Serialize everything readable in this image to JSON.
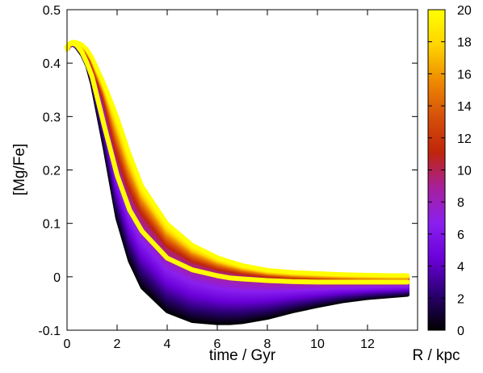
{
  "chart_data": {
    "type": "line",
    "title": "",
    "xlabel": "time / Gyr",
    "ylabel": "[Mg/Fe]",
    "xlim": [
      0,
      14
    ],
    "ylim": [
      -0.1,
      0.5
    ],
    "x_ticks": [
      0,
      2,
      4,
      6,
      8,
      10,
      12
    ],
    "y_ticks": [
      -0.1,
      0,
      0.1,
      0.2,
      0.3,
      0.4,
      0.5
    ],
    "x_tick_labels": [
      "0",
      "2",
      "4",
      "6",
      "8",
      "10",
      "12"
    ],
    "y_tick_labels": [
      "-0.1",
      "0",
      "0.1",
      "0.2",
      "0.3",
      "0.4",
      "0.5"
    ],
    "grid": false,
    "colorbar": {
      "label": "R / kpc",
      "range": [
        0,
        20
      ],
      "ticks": [
        0,
        2,
        4,
        6,
        8,
        10,
        12,
        14,
        16,
        18,
        20
      ],
      "tick_labels": [
        "0",
        "2",
        "4",
        "6",
        "8",
        "10",
        "12",
        "14",
        "16",
        "18",
        "20"
      ],
      "colormap": [
        "#000000",
        "#2a0070",
        "#6a00d8",
        "#8a1ff0",
        "#a7209b",
        "#c0250a",
        "#d6500a",
        "#ee8a00",
        "#ffd400",
        "#ffff00"
      ]
    },
    "highlight_color": "#ffff00",
    "x": [
      0,
      0.1,
      0.2,
      0.3,
      0.4,
      0.6,
      0.8,
      1.0,
      1.5,
      2.0,
      2.5,
      3.0,
      4.0,
      5.0,
      6.0,
      6.5,
      7.0,
      8.0,
      9.0,
      10.0,
      11.0,
      12.0,
      13.0,
      13.6
    ],
    "series": [
      {
        "R_kpc": 0,
        "values": [
          0.425,
          0.432,
          0.434,
          0.433,
          0.428,
          0.415,
          0.395,
          0.36,
          0.24,
          0.11,
          0.03,
          -0.02,
          -0.065,
          -0.083,
          -0.087,
          -0.087,
          -0.085,
          -0.077,
          -0.065,
          -0.055,
          -0.046,
          -0.04,
          -0.036,
          -0.034
        ]
      },
      {
        "R_kpc": 10,
        "values": [
          0.425,
          0.432,
          0.436,
          0.437,
          0.435,
          0.43,
          0.418,
          0.4,
          0.33,
          0.23,
          0.16,
          0.115,
          0.055,
          0.028,
          0.014,
          0.01,
          0.006,
          0.001,
          -0.002,
          -0.004,
          -0.005,
          -0.006,
          -0.006,
          -0.006
        ]
      },
      {
        "R_kpc": 20,
        "values": [
          0.425,
          0.436,
          0.44,
          0.44,
          0.439,
          0.435,
          0.426,
          0.411,
          0.36,
          0.3,
          0.23,
          0.17,
          0.1,
          0.06,
          0.037,
          0.029,
          0.022,
          0.013,
          0.009,
          0.007,
          0.005,
          0.004,
          0.003,
          0.003
        ]
      },
      {
        "R_kpc": 8,
        "highlighted": true,
        "values": [
          0.43,
          0.436,
          0.437,
          0.436,
          0.433,
          0.42,
          0.4,
          0.375,
          0.28,
          0.19,
          0.125,
          0.085,
          0.035,
          0.013,
          0.002,
          -0.002,
          -0.004,
          -0.007,
          -0.009,
          -0.01,
          -0.01,
          -0.01,
          -0.01,
          -0.01
        ]
      }
    ]
  }
}
